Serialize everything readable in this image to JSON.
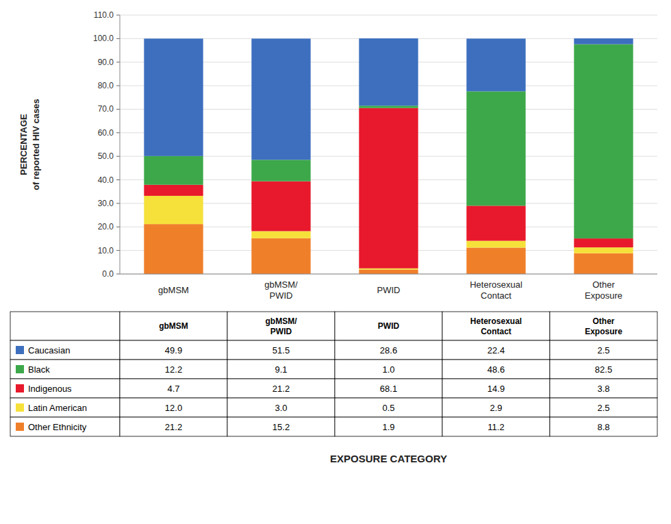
{
  "chart_data": {
    "type": "bar",
    "stacked": true,
    "categories": [
      "gbMSM",
      "gbMSM/\nPWID",
      "PWID",
      "Heterosexual\nContact",
      "Other\nExposure"
    ],
    "series": [
      {
        "name": "Caucasian",
        "color": "#3d6fbe",
        "values": [
          49.9,
          51.5,
          28.6,
          22.4,
          2.5
        ],
        "value_labels": [
          "49.9",
          "51.5",
          "28.6",
          "22.4",
          "2.5"
        ]
      },
      {
        "name": "Black",
        "color": "#3da84a",
        "values": [
          12.2,
          9.1,
          1.0,
          48.6,
          82.5
        ],
        "value_labels": [
          "12.2",
          "9.1",
          "1.0",
          "48.6",
          "82.5"
        ]
      },
      {
        "name": "Indigenous",
        "color": "#e8192c",
        "values": [
          4.7,
          21.2,
          68.1,
          14.9,
          3.8
        ],
        "value_labels": [
          "4.7",
          "21.2",
          "68.1",
          "14.9",
          "3.8"
        ]
      },
      {
        "name": "Latin American",
        "color": "#f5e13a",
        "values": [
          12.0,
          3.0,
          0.5,
          2.9,
          2.5
        ],
        "value_labels": [
          "12.0",
          "3.0",
          "0.5",
          "2.9",
          "2.5"
        ]
      },
      {
        "name": "Other Ethnicity",
        "color": "#f07f2a",
        "values": [
          21.2,
          15.2,
          1.9,
          11.2,
          8.8
        ],
        "value_labels": [
          "21.2",
          "15.2",
          "1.9",
          "11.2",
          "8.8"
        ]
      }
    ],
    "y_label": "PERCENTAGE\nof reported HIV cases",
    "x_label": "EXPOSURE CATEGORY",
    "ylim": [
      0,
      110
    ],
    "yticks": [
      {
        "value": 0,
        "label": "0.0"
      },
      {
        "value": 10,
        "label": "10.0"
      },
      {
        "value": 20,
        "label": "20.0"
      },
      {
        "value": 30,
        "label": "30.0"
      },
      {
        "value": 40,
        "label": "40.0"
      },
      {
        "value": 50,
        "label": "50.0"
      },
      {
        "value": 60,
        "label": "60.0"
      },
      {
        "value": 70,
        "label": "70.0"
      },
      {
        "value": 80,
        "label": "80.0"
      },
      {
        "value": 90,
        "label": "90.0"
      },
      {
        "value": 100,
        "label": "100.0"
      },
      {
        "value": 110,
        "label": "110.0"
      }
    ],
    "grid": true
  }
}
